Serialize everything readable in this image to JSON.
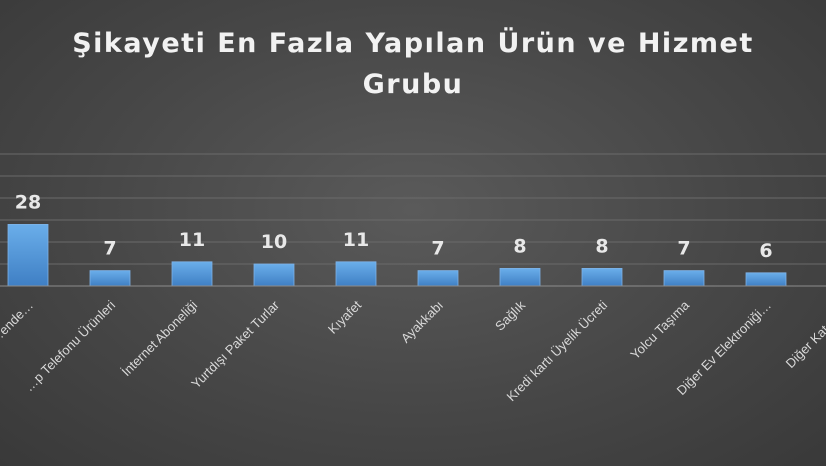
{
  "chart_data": {
    "type": "bar",
    "title_lines": [
      "Şikayeti En Fazla Yapılan Ürün ve Hizmet",
      "Grubu"
    ],
    "categories": [
      "…ende…",
      "…p Telefonu Ürünleri",
      "İnternet Aboneliği",
      "Yurtdışı Paket Turlar",
      "Kıyafet",
      "Ayakkabı",
      "Sağlık",
      "Kredi kartı Üyelik Ücreti",
      "Yolcu Taşıma",
      "Diğer Ev Elektroniği…",
      "Diğer Katego…"
    ],
    "values": [
      28,
      7,
      11,
      10,
      11,
      7,
      8,
      8,
      7,
      6,
      null
    ],
    "data_labels": [
      "28",
      "7",
      "11",
      "10",
      "11",
      "7",
      "8",
      "8",
      "7",
      "6",
      ""
    ],
    "ylim": [
      0,
      60
    ],
    "grid": true,
    "legend": "none",
    "colors": {
      "bar": "#5b9bd5",
      "background": "#474747",
      "text": "#f2f2f2"
    }
  }
}
